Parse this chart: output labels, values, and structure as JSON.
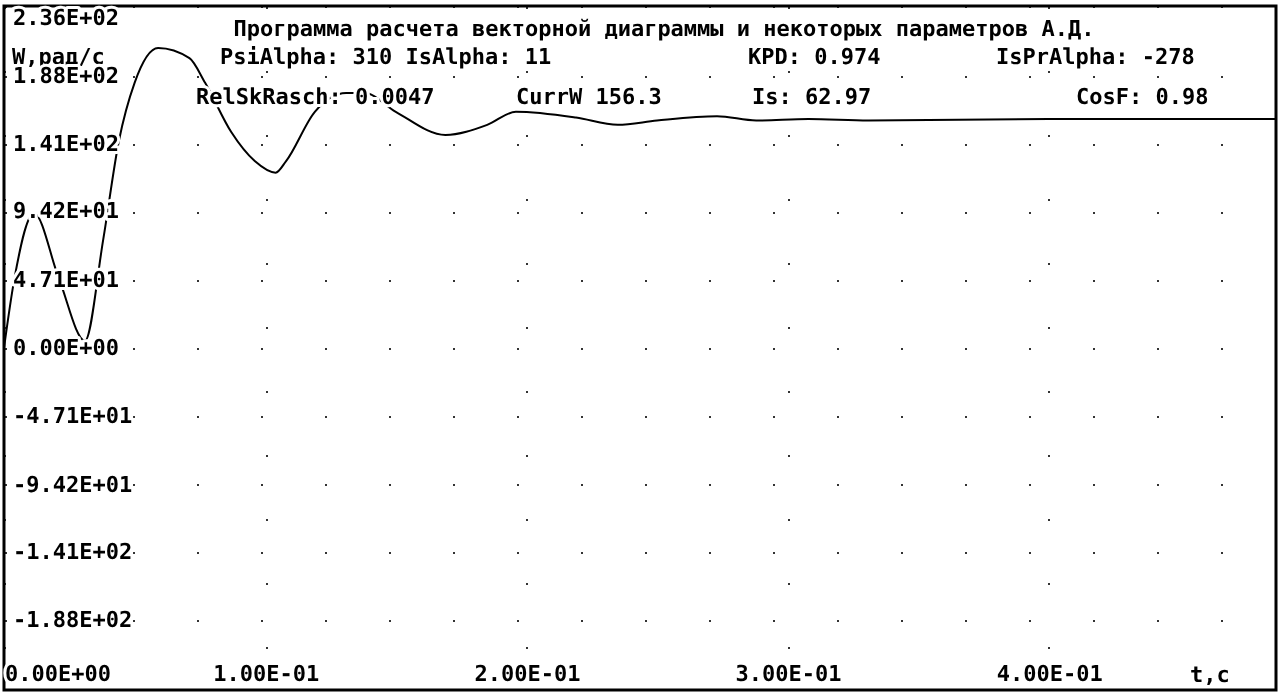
{
  "chart_data": {
    "type": "line",
    "title": "Программа расчета векторной диаграммы и некоторых параметров А.Д.",
    "xlabel": "t,c",
    "ylabel": "W,рад/с",
    "annotations": [
      "PsiAlpha:   310 IsAlpha: 11",
      "KPD: 0.974",
      "IsPrAlpha: -278",
      "RelSkRasch: 0.0047",
      "CurrW  156.3",
      "Is:  62.97",
      "CosF: 0.98"
    ],
    "x": [
      0,
      0.004,
      0.0115,
      0.021,
      0.031,
      0.038,
      0.044,
      0.05,
      0.059,
      0.071,
      0.077,
      0.087,
      0.096,
      0.104,
      0.108,
      0.119,
      0.131,
      0.138,
      0.15,
      0.169,
      0.185,
      0.196,
      0.219,
      0.235,
      0.25,
      0.273,
      0.288,
      0.308,
      0.331,
      0.4,
      0.487
    ],
    "series": [
      {
        "color": "#000000",
        "values": [
          0,
          48,
          93,
          48,
          5,
          75,
          143,
          183,
          207,
          200,
          183,
          149,
          129,
          121,
          129,
          163,
          176,
          176,
          163,
          147,
          154,
          163,
          159,
          154,
          157,
          160,
          157,
          158,
          157,
          158,
          158
        ]
      }
    ],
    "xlim": [
      0,
      0.487
    ],
    "ylim": [
      -236,
      236
    ],
    "xticks": [
      {
        "value": 0,
        "label": "0.00E+00"
      },
      {
        "value": 0.1,
        "label": "1.00E-01"
      },
      {
        "value": 0.2,
        "label": "2.00E-01"
      },
      {
        "value": 0.3,
        "label": "3.00E-01"
      },
      {
        "value": 0.4,
        "label": "4.00E-01"
      }
    ],
    "yticks": [
      {
        "value": 236,
        "label": "2.36E+02"
      },
      {
        "value": 188,
        "label": "1.88E+02"
      },
      {
        "value": 141,
        "label": "1.41E+02"
      },
      {
        "value": 94.2,
        "label": "9.42E+01"
      },
      {
        "value": 47.1,
        "label": "4.71E+01"
      },
      {
        "value": 0,
        "label": "0.00E+00"
      },
      {
        "value": -47.1,
        "label": "-4.71E+01"
      },
      {
        "value": -94.2,
        "label": "-9.42E+01"
      },
      {
        "value": -141,
        "label": "-1.41E+02"
      },
      {
        "value": -188,
        "label": "-1.88E+02"
      }
    ],
    "grid": true,
    "line_style": "solid",
    "marker": "none"
  }
}
